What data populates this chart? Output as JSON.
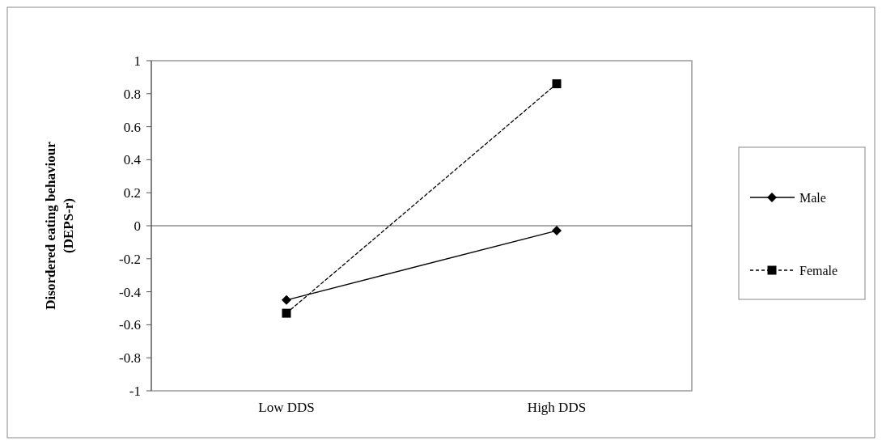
{
  "chart_data": {
    "type": "line",
    "ylabel": "Disordered eating behaviour\n(DEPS-r)",
    "categories": [
      "Low DDS",
      "High DDS"
    ],
    "series": [
      {
        "name": "Male",
        "color": "#000000",
        "values": [
          -0.45,
          -0.03
        ],
        "marker": "diamond",
        "line_style": "solid"
      },
      {
        "name": "Female",
        "color": "#000000",
        "values": [
          -0.53,
          0.86
        ],
        "marker": "square",
        "line_style": "dashed"
      }
    ],
    "ylim": [
      -1,
      1
    ],
    "yticks": [
      -1,
      -0.8,
      -0.6,
      -0.4,
      -0.2,
      0,
      0.2,
      0.4,
      0.6,
      0.8,
      1
    ],
    "legend": "right"
  }
}
